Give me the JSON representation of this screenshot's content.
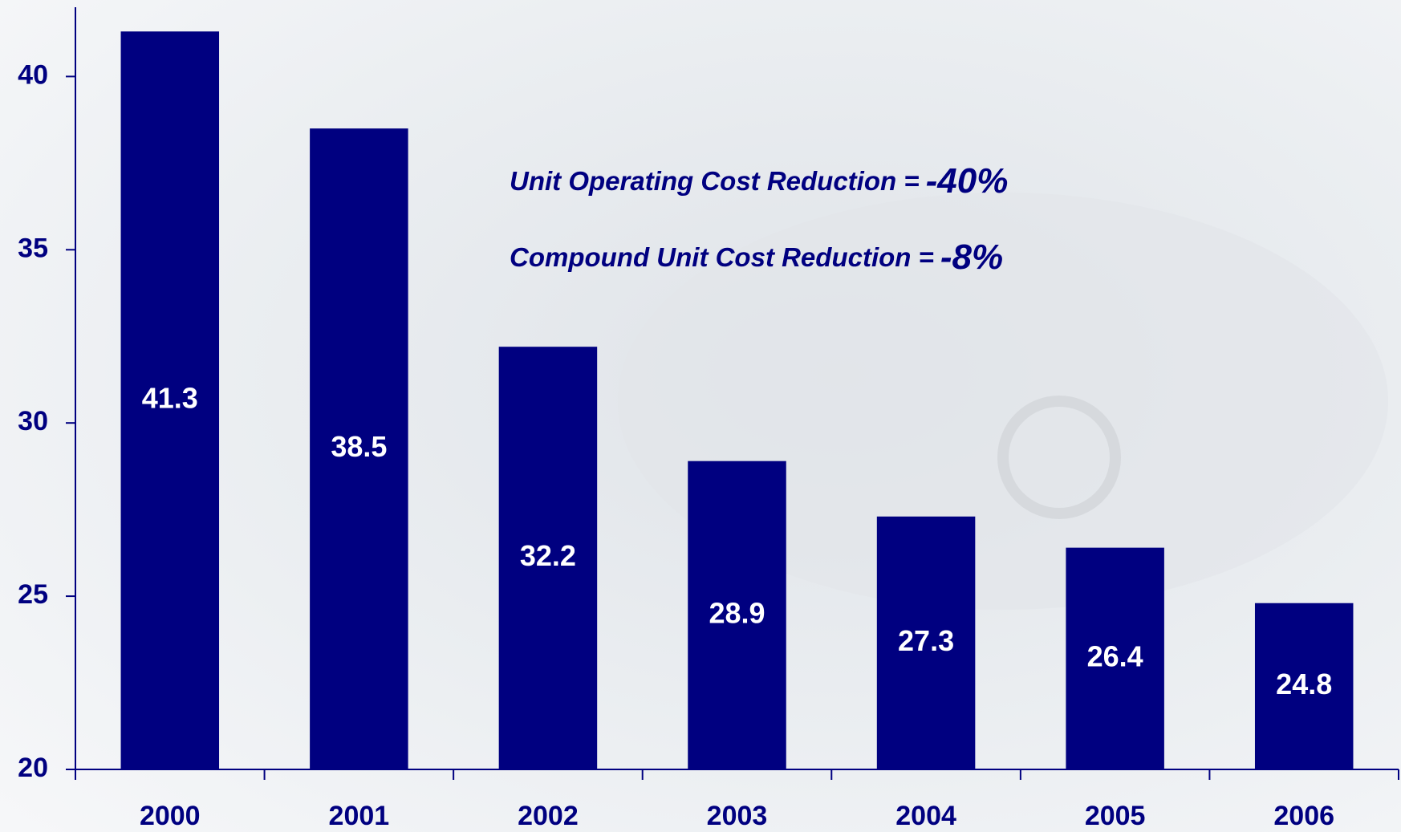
{
  "chart_data": {
    "type": "bar",
    "categories": [
      "2000",
      "2001",
      "2002",
      "2003",
      "2004",
      "2005",
      "2006"
    ],
    "values": [
      41.3,
      38.5,
      32.2,
      28.9,
      27.3,
      26.4,
      24.8
    ],
    "color": "#000080",
    "ylim": [
      20,
      42
    ],
    "yticks": [
      20,
      25,
      30,
      35,
      40
    ],
    "annotations": [
      {
        "text": "Unit Operating Cost Reduction =",
        "value": "-40%"
      },
      {
        "text": "Compound Unit Cost Reduction =",
        "value": "-8%"
      }
    ]
  }
}
